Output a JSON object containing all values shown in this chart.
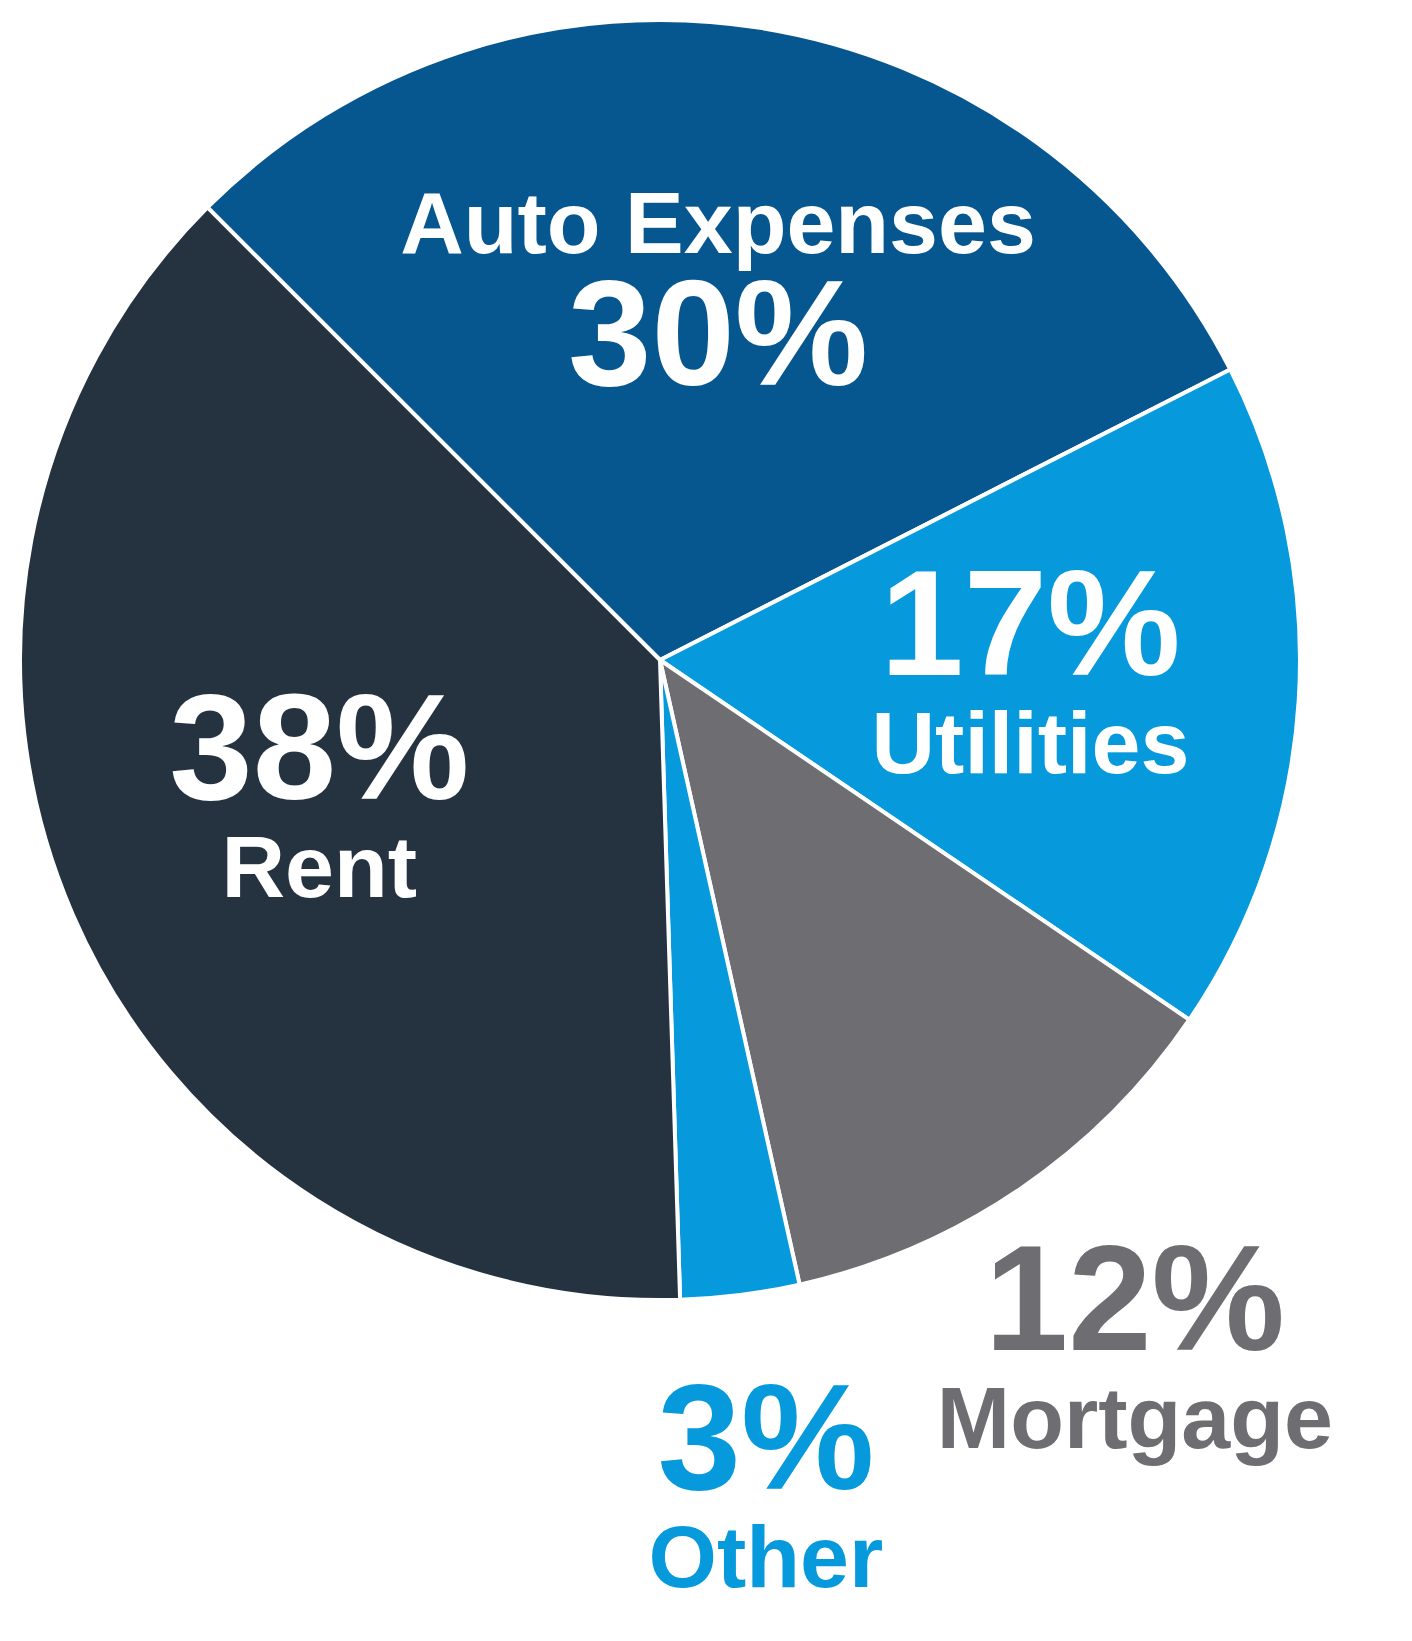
{
  "chart_data": {
    "type": "pie",
    "categories": [
      "Auto Expenses",
      "Utilities",
      "Mortgage",
      "Other",
      "Rent"
    ],
    "values": [
      30,
      17,
      12,
      3,
      38
    ],
    "value_labels": [
      "30%",
      "17%",
      "12%",
      "3%",
      "38%"
    ],
    "colors": [
      "#06568f",
      "#069add",
      "#6e6e72",
      "#069add",
      "#253240"
    ]
  }
}
